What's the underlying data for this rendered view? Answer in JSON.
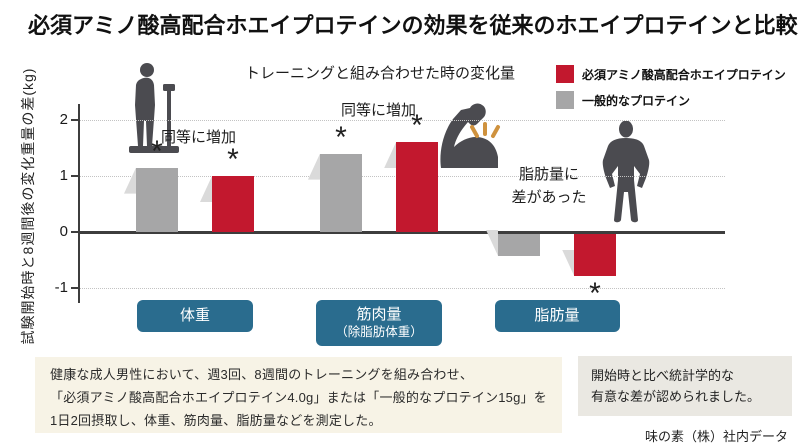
{
  "page": {
    "title": "必須アミノ酸高配合ホエイプロテインの効果を従来のホエイプロテインと比較",
    "source": "味の素（株）社内データ"
  },
  "chart": {
    "subtitle": "トレーニングと組み合わせた時の変化量",
    "y_axis_label": "試験開始時と8週間後の変化重量の差(kg)",
    "badge_color": "#2a6c8e",
    "legend": [
      {
        "label": "必須アミノ酸高配合ホエイプロテイン",
        "color": "#c2182e"
      },
      {
        "label": "一般的なプロテイン",
        "color": "#a6a6a7"
      }
    ],
    "annotations": {
      "weight": "同等に増加",
      "muscle": "同等に増加",
      "fat_line1": "脂肪量に",
      "fat_line2": "差があった"
    },
    "icons": [
      "person-on-scale-icon",
      "flexed-arm-icon",
      "standing-man-icon"
    ]
  },
  "chart_data": {
    "type": "bar",
    "title": "トレーニングと組み合わせた時の変化量",
    "ylabel": "試験開始時と8週間後の変化重量の差(kg)",
    "unit": "kg",
    "categories": [
      {
        "label": "体重",
        "sublabel": ""
      },
      {
        "label": "筋肉量",
        "sublabel": "（除脂肪体重）"
      },
      {
        "label": "脂肪量",
        "sublabel": ""
      }
    ],
    "series": [
      {
        "name": "一般的なプロテイン",
        "color": "#a6a6a7",
        "values": [
          1.15,
          1.4,
          -0.4
        ],
        "significant": [
          true,
          true,
          false
        ]
      },
      {
        "name": "必須アミノ酸高配合ホエイプロテイン",
        "color": "#c2182e",
        "values": [
          1.0,
          1.6,
          -0.75
        ],
        "significant": [
          true,
          true,
          true
        ]
      }
    ],
    "yticks": [
      2,
      1,
      0,
      -1
    ],
    "ylim": [
      -1.27,
      2.29
    ],
    "grid": "dotted-horizontal",
    "legend_position": "top-right"
  },
  "footnote": {
    "lines": [
      "健康な成人男性において、週3回、8週間のトレーニングを組み合わせ、",
      "「必須アミノ酸高配合ホエイプロテイン4.0g」または「一般的なプロテイン15g」を",
      "1日2回摂取し、体重、筋肉量、脂肪量などを測定した。"
    ]
  },
  "significance_box": {
    "lines": [
      "開始時と比べ統計学的な",
      "有意な差が認められました。"
    ]
  }
}
